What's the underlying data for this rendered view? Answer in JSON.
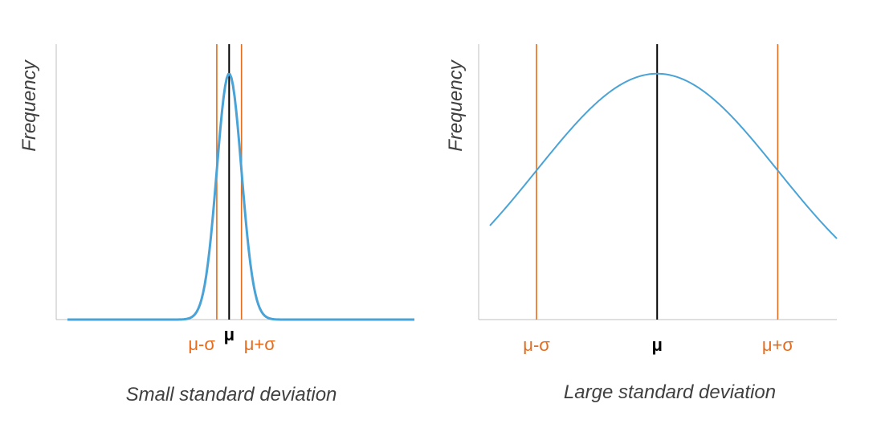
{
  "chart_data": [
    {
      "type": "line",
      "title": "",
      "xlabel": "Small standard deviation",
      "ylabel": "Frequency",
      "distribution": "normal",
      "mean": 0,
      "sd": 1,
      "xlim": [
        -14,
        15
      ],
      "ylim": [
        0,
        1.12
      ],
      "peak": 1,
      "grid": false,
      "markers": [
        {
          "x": -1,
          "label": "μ-σ",
          "color": "#E36C1E"
        },
        {
          "x": 0,
          "label": "μ",
          "color": "#000000"
        },
        {
          "x": 1,
          "label": "μ+σ",
          "color": "#E36C1E"
        }
      ]
    },
    {
      "type": "line",
      "title": "",
      "xlabel": "Large standard deviation",
      "ylabel": "Frequency",
      "distribution": "normal",
      "mean": 0,
      "sd": 1,
      "xlim": [
        -1.48,
        1.49
      ],
      "ylim": [
        0,
        1.12
      ],
      "peak": 1,
      "grid": false,
      "markers": [
        {
          "x": -1,
          "label": "μ-σ",
          "color": "#E36C1E"
        },
        {
          "x": 0,
          "label": "μ",
          "color": "#000000"
        },
        {
          "x": 1,
          "label": "μ+σ",
          "color": "#E36C1E"
        }
      ]
    }
  ],
  "colors": {
    "curve": "#4AA3D6",
    "axis": "#BFBFBF",
    "sigma": "#E36C1E",
    "mean": "#000000"
  }
}
